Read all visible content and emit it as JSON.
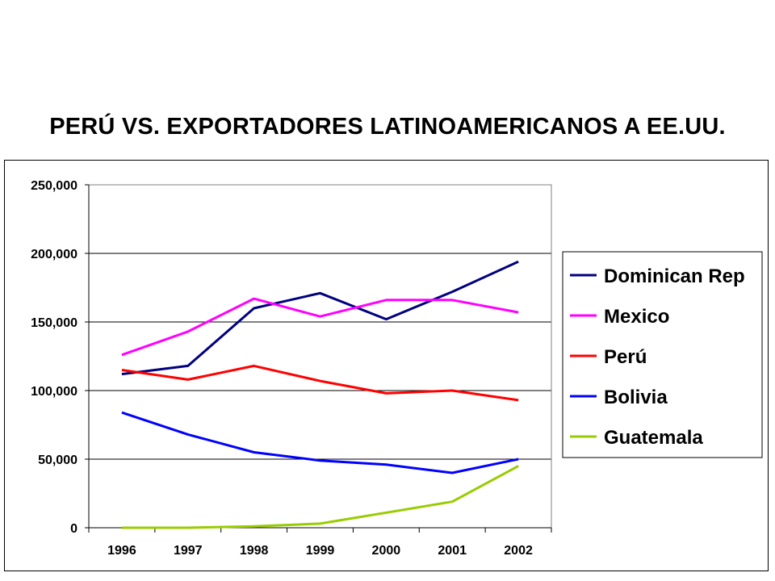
{
  "chart_data": {
    "type": "line",
    "title": "PERÚ VS. EXPORTADORES LATINOAMERICANOS A EE.UU.",
    "xlabel": "",
    "ylabel": "",
    "x": [
      "1996",
      "1997",
      "1998",
      "1999",
      "2000",
      "2001",
      "2002"
    ],
    "ylim": [
      0,
      250000
    ],
    "yticks": [
      "0",
      "50,000",
      "100,000",
      "150,000",
      "200,000",
      "250,000"
    ],
    "grid": true,
    "legend_position": "right",
    "series": [
      {
        "name": "Dominican Rep",
        "color": "#000080",
        "values": [
          112000,
          118000,
          160000,
          171000,
          152000,
          172000,
          194000
        ]
      },
      {
        "name": "Mexico",
        "color": "#FF00FF",
        "values": [
          126000,
          143000,
          167000,
          154000,
          166000,
          166000,
          157000
        ]
      },
      {
        "name": "Perú",
        "color": "#FF0000",
        "values": [
          115000,
          108000,
          118000,
          107000,
          98000,
          100000,
          93000
        ]
      },
      {
        "name": "Bolivia",
        "color": "#0000FF",
        "values": [
          84000,
          68000,
          55000,
          49000,
          46000,
          40000,
          50000
        ]
      },
      {
        "name": "Guatemala",
        "color": "#99CC00",
        "values": [
          0,
          0,
          1000,
          3000,
          11000,
          19000,
          45000
        ]
      }
    ]
  }
}
